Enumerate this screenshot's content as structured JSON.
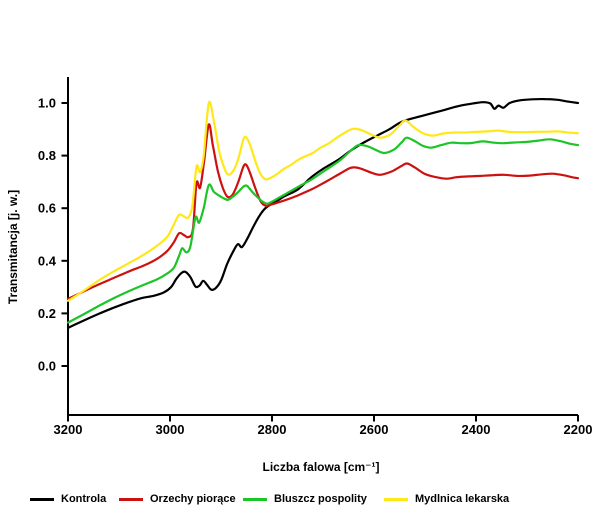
{
  "chart": {
    "ylabel": "Transmitancja [j. w.]",
    "xlabel": "Liczba falowa [cm⁻¹]"
  },
  "chart_data": {
    "type": "line",
    "title": "",
    "xlabel": "Liczba falowa [cm⁻¹]",
    "ylabel": "Transmitancja [j. w.]",
    "x_axis": {
      "label": "Liczba falowa [cm⁻¹]",
      "min": 2200,
      "max": 3200,
      "reversed": true,
      "ticks": [
        3200,
        3000,
        2800,
        2600,
        2400,
        2200
      ],
      "tick_labels": [
        "3200",
        "3000",
        "2800",
        "2600",
        "2400",
        "2200"
      ]
    },
    "y_axis": {
      "label": "Transmitancja [j. w.]",
      "ticks": [
        0.0,
        0.2,
        0.4,
        0.6,
        0.8,
        1.0
      ],
      "tick_labels": [
        "0.0",
        "0.2",
        "0.4",
        "0.6",
        "0.8",
        "1.0"
      ],
      "drawn_min": -0.19,
      "drawn_max": 1.1
    },
    "grid": false,
    "legend_position": "bottom",
    "series": [
      {
        "name": "Kontrola",
        "color": "#000000",
        "points": [
          [
            3200,
            0.145
          ],
          [
            3170,
            0.172
          ],
          [
            3140,
            0.198
          ],
          [
            3110,
            0.222
          ],
          [
            3085,
            0.24
          ],
          [
            3058,
            0.257
          ],
          [
            3032,
            0.267
          ],
          [
            3012,
            0.28
          ],
          [
            2998,
            0.3
          ],
          [
            2988,
            0.33
          ],
          [
            2978,
            0.353
          ],
          [
            2970,
            0.358
          ],
          [
            2960,
            0.338
          ],
          [
            2950,
            0.302
          ],
          [
            2942,
            0.306
          ],
          [
            2935,
            0.324
          ],
          [
            2927,
            0.308
          ],
          [
            2919,
            0.29
          ],
          [
            2910,
            0.297
          ],
          [
            2900,
            0.325
          ],
          [
            2888,
            0.388
          ],
          [
            2877,
            0.432
          ],
          [
            2867,
            0.463
          ],
          [
            2859,
            0.452
          ],
          [
            2849,
            0.482
          ],
          [
            2837,
            0.528
          ],
          [
            2825,
            0.57
          ],
          [
            2813,
            0.6
          ],
          [
            2801,
            0.616
          ],
          [
            2789,
            0.629
          ],
          [
            2776,
            0.645
          ],
          [
            2749,
            0.672
          ],
          [
            2723,
            0.718
          ],
          [
            2698,
            0.752
          ],
          [
            2671,
            0.783
          ],
          [
            2645,
            0.82
          ],
          [
            2620,
            0.85
          ],
          [
            2593,
            0.877
          ],
          [
            2570,
            0.9
          ],
          [
            2544,
            0.93
          ],
          [
            2508,
            0.95
          ],
          [
            2469,
            0.97
          ],
          [
            2430,
            0.99
          ],
          [
            2400,
            1.0
          ],
          [
            2385,
            1.003
          ],
          [
            2372,
            0.998
          ],
          [
            2364,
            0.978
          ],
          [
            2356,
            0.99
          ],
          [
            2346,
            0.982
          ],
          [
            2334,
            1.0
          ],
          [
            2315,
            1.01
          ],
          [
            2290,
            1.014
          ],
          [
            2265,
            1.015
          ],
          [
            2240,
            1.012
          ],
          [
            2218,
            1.005
          ],
          [
            2200,
            1.0
          ]
        ]
      },
      {
        "name": "Orzechy piorące",
        "color": "#CC1111",
        "points": [
          [
            3200,
            0.255
          ],
          [
            3170,
            0.283
          ],
          [
            3140,
            0.31
          ],
          [
            3110,
            0.335
          ],
          [
            3080,
            0.36
          ],
          [
            3050,
            0.383
          ],
          [
            3025,
            0.408
          ],
          [
            3005,
            0.438
          ],
          [
            2992,
            0.472
          ],
          [
            2982,
            0.505
          ],
          [
            2972,
            0.497
          ],
          [
            2964,
            0.49
          ],
          [
            2955,
            0.52
          ],
          [
            2948,
            0.695
          ],
          [
            2941,
            0.678
          ],
          [
            2933,
            0.78
          ],
          [
            2924,
            0.918
          ],
          [
            2916,
            0.84
          ],
          [
            2906,
            0.74
          ],
          [
            2896,
            0.675
          ],
          [
            2887,
            0.643
          ],
          [
            2877,
            0.652
          ],
          [
            2866,
            0.7
          ],
          [
            2856,
            0.758
          ],
          [
            2850,
            0.764
          ],
          [
            2842,
            0.728
          ],
          [
            2832,
            0.672
          ],
          [
            2822,
            0.625
          ],
          [
            2812,
            0.609
          ],
          [
            2800,
            0.615
          ],
          [
            2788,
            0.622
          ],
          [
            2775,
            0.63
          ],
          [
            2750,
            0.648
          ],
          [
            2722,
            0.672
          ],
          [
            2695,
            0.7
          ],
          [
            2668,
            0.73
          ],
          [
            2648,
            0.752
          ],
          [
            2638,
            0.755
          ],
          [
            2625,
            0.75
          ],
          [
            2605,
            0.735
          ],
          [
            2588,
            0.727
          ],
          [
            2565,
            0.74
          ],
          [
            2545,
            0.762
          ],
          [
            2535,
            0.77
          ],
          [
            2520,
            0.755
          ],
          [
            2500,
            0.73
          ],
          [
            2478,
            0.718
          ],
          [
            2458,
            0.712
          ],
          [
            2438,
            0.718
          ],
          [
            2415,
            0.721
          ],
          [
            2390,
            0.723
          ],
          [
            2365,
            0.726
          ],
          [
            2345,
            0.727
          ],
          [
            2320,
            0.723
          ],
          [
            2295,
            0.724
          ],
          [
            2270,
            0.729
          ],
          [
            2250,
            0.731
          ],
          [
            2230,
            0.726
          ],
          [
            2212,
            0.718
          ],
          [
            2200,
            0.714
          ]
        ]
      },
      {
        "name": "Bluszcz pospolity",
        "color": "#1DC427",
        "points": [
          [
            3200,
            0.165
          ],
          [
            3170,
            0.196
          ],
          [
            3140,
            0.228
          ],
          [
            3110,
            0.258
          ],
          [
            3080,
            0.285
          ],
          [
            3050,
            0.31
          ],
          [
            3025,
            0.33
          ],
          [
            3005,
            0.352
          ],
          [
            2992,
            0.375
          ],
          [
            2982,
            0.42
          ],
          [
            2976,
            0.448
          ],
          [
            2968,
            0.432
          ],
          [
            2960,
            0.455
          ],
          [
            2950,
            0.565
          ],
          [
            2943,
            0.545
          ],
          [
            2934,
            0.6
          ],
          [
            2924,
            0.688
          ],
          [
            2914,
            0.662
          ],
          [
            2904,
            0.648
          ],
          [
            2894,
            0.637
          ],
          [
            2886,
            0.632
          ],
          [
            2876,
            0.645
          ],
          [
            2866,
            0.662
          ],
          [
            2856,
            0.682
          ],
          [
            2849,
            0.685
          ],
          [
            2840,
            0.665
          ],
          [
            2830,
            0.645
          ],
          [
            2820,
            0.627
          ],
          [
            2810,
            0.617
          ],
          [
            2800,
            0.625
          ],
          [
            2788,
            0.638
          ],
          [
            2775,
            0.652
          ],
          [
            2750,
            0.68
          ],
          [
            2722,
            0.71
          ],
          [
            2695,
            0.745
          ],
          [
            2668,
            0.78
          ],
          [
            2645,
            0.82
          ],
          [
            2630,
            0.84
          ],
          [
            2612,
            0.835
          ],
          [
            2595,
            0.82
          ],
          [
            2580,
            0.81
          ],
          [
            2560,
            0.824
          ],
          [
            2545,
            0.852
          ],
          [
            2536,
            0.868
          ],
          [
            2520,
            0.855
          ],
          [
            2505,
            0.838
          ],
          [
            2488,
            0.83
          ],
          [
            2468,
            0.84
          ],
          [
            2448,
            0.849
          ],
          [
            2428,
            0.847
          ],
          [
            2408,
            0.848
          ],
          [
            2388,
            0.854
          ],
          [
            2368,
            0.85
          ],
          [
            2348,
            0.847
          ],
          [
            2325,
            0.85
          ],
          [
            2300,
            0.852
          ],
          [
            2278,
            0.857
          ],
          [
            2255,
            0.862
          ],
          [
            2235,
            0.855
          ],
          [
            2215,
            0.845
          ],
          [
            2200,
            0.84
          ]
        ]
      },
      {
        "name": "Mydlnica lekarska",
        "color": "#FFE81A",
        "points": [
          [
            3200,
            0.248
          ],
          [
            3170,
            0.285
          ],
          [
            3140,
            0.325
          ],
          [
            3110,
            0.36
          ],
          [
            3080,
            0.392
          ],
          [
            3050,
            0.425
          ],
          [
            3025,
            0.458
          ],
          [
            3005,
            0.492
          ],
          [
            2992,
            0.54
          ],
          [
            2982,
            0.575
          ],
          [
            2972,
            0.568
          ],
          [
            2964,
            0.565
          ],
          [
            2956,
            0.61
          ],
          [
            2948,
            0.758
          ],
          [
            2941,
            0.737
          ],
          [
            2934,
            0.8
          ],
          [
            2924,
            1.0
          ],
          [
            2914,
            0.93
          ],
          [
            2904,
            0.82
          ],
          [
            2894,
            0.755
          ],
          [
            2886,
            0.728
          ],
          [
            2876,
            0.742
          ],
          [
            2866,
            0.788
          ],
          [
            2856,
            0.862
          ],
          [
            2850,
            0.868
          ],
          [
            2842,
            0.835
          ],
          [
            2832,
            0.775
          ],
          [
            2822,
            0.728
          ],
          [
            2812,
            0.71
          ],
          [
            2800,
            0.718
          ],
          [
            2790,
            0.73
          ],
          [
            2778,
            0.748
          ],
          [
            2765,
            0.762
          ],
          [
            2750,
            0.782
          ],
          [
            2735,
            0.797
          ],
          [
            2720,
            0.81
          ],
          [
            2705,
            0.83
          ],
          [
            2690,
            0.845
          ],
          [
            2670,
            0.872
          ],
          [
            2652,
            0.893
          ],
          [
            2640,
            0.902
          ],
          [
            2625,
            0.897
          ],
          [
            2605,
            0.88
          ],
          [
            2588,
            0.868
          ],
          [
            2568,
            0.88
          ],
          [
            2550,
            0.915
          ],
          [
            2538,
            0.933
          ],
          [
            2522,
            0.908
          ],
          [
            2505,
            0.886
          ],
          [
            2485,
            0.876
          ],
          [
            2465,
            0.884
          ],
          [
            2442,
            0.888
          ],
          [
            2420,
            0.888
          ],
          [
            2400,
            0.89
          ],
          [
            2378,
            0.892
          ],
          [
            2356,
            0.895
          ],
          [
            2335,
            0.89
          ],
          [
            2310,
            0.889
          ],
          [
            2285,
            0.89
          ],
          [
            2260,
            0.891
          ],
          [
            2240,
            0.892
          ],
          [
            2220,
            0.888
          ],
          [
            2200,
            0.885
          ]
        ]
      }
    ]
  },
  "layout_colors": {
    "axis": "#000000",
    "background": "#ffffff"
  }
}
